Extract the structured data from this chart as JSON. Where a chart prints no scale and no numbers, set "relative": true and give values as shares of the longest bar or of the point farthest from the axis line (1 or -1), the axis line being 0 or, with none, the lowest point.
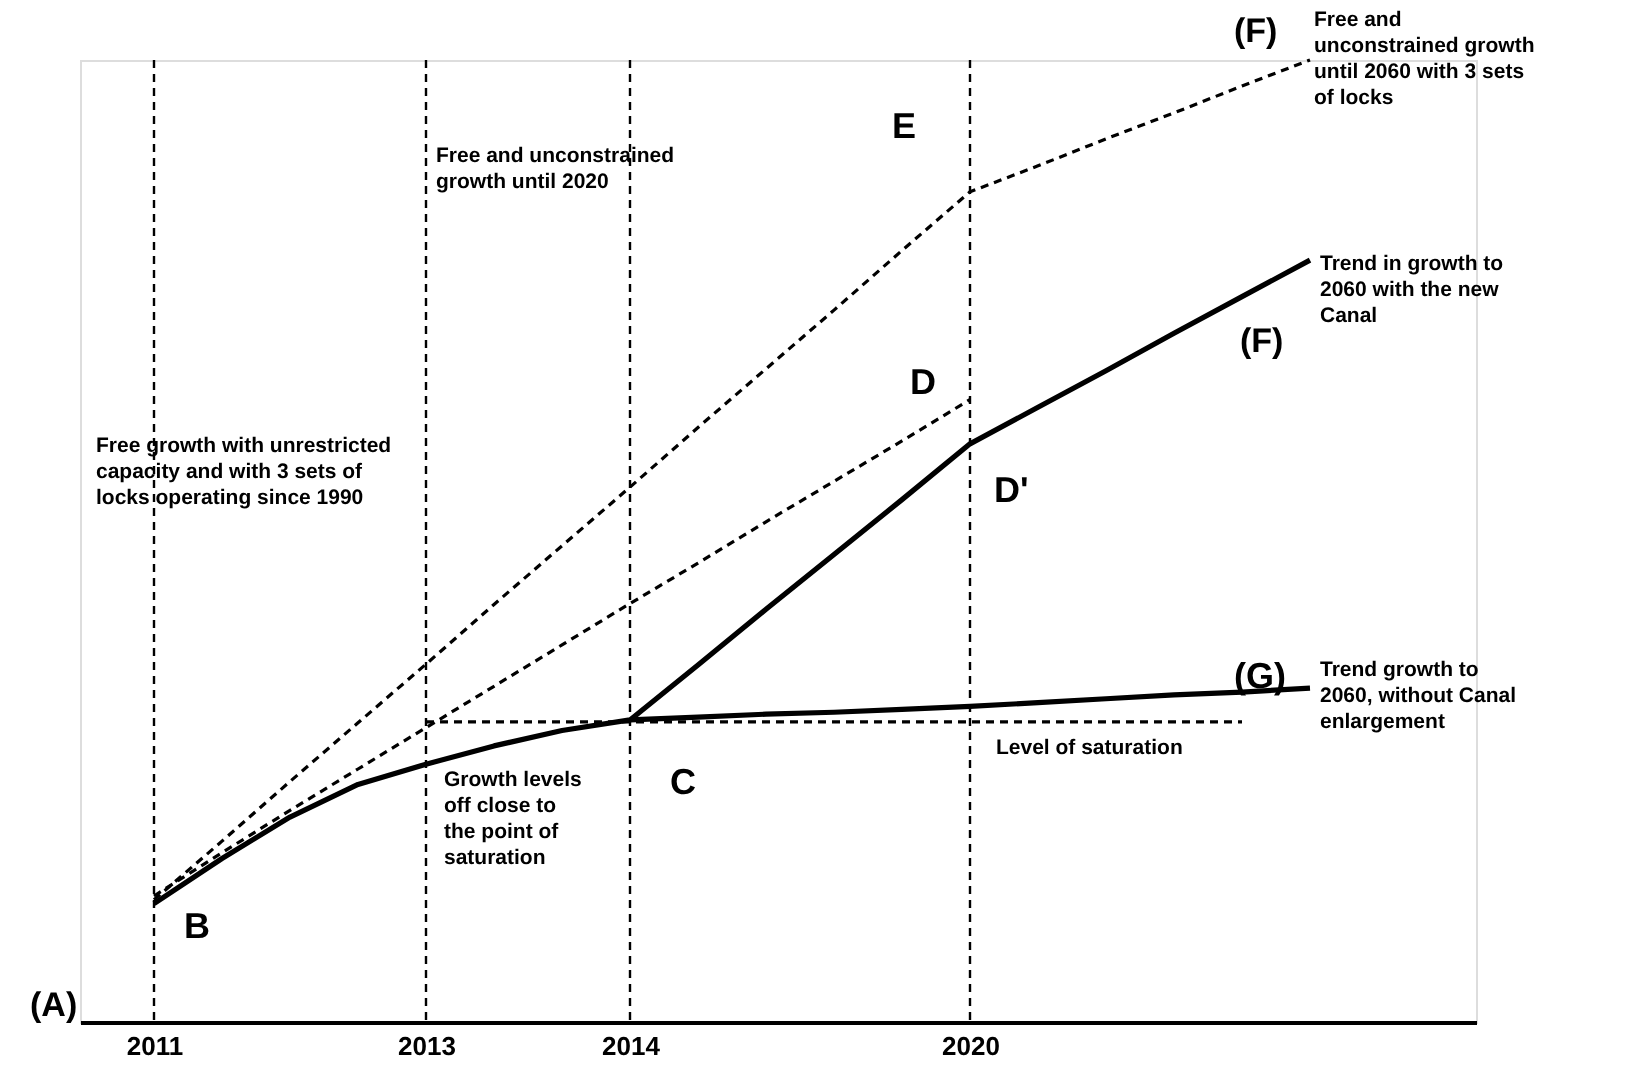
{
  "chart_data": {
    "type": "line",
    "relative": true,
    "grid": false,
    "tick_labels": "x",
    "marker": "none",
    "categories": [
      "2011",
      null,
      null,
      null,
      "2013",
      null,
      null,
      "2014",
      null,
      null,
      null,
      null,
      "2020",
      null,
      null,
      null,
      null,
      null
    ],
    "series": [
      {
        "color": "#000000",
        "line_style": "dashed",
        "values": [
          0.127,
          0.188,
          0.25,
          0.311,
          0.372,
          0.434,
          0.495,
          0.556,
          0.618,
          0.679,
          0.74,
          0.802,
          0.863,
          0.89,
          0.918,
          0.945,
          0.973,
          1.0
        ]
      },
      {
        "color": "#000000",
        "line_style": "dashed",
        "values": [
          0.131,
          0.176,
          0.22,
          0.263,
          0.306,
          0.349,
          0.392,
          0.435,
          0.477,
          0.52,
          0.562,
          0.604,
          0.647,
          null,
          null,
          null,
          null,
          null
        ]
      },
      {
        "color": "#000000",
        "line_style": "solid",
        "values": [
          0.123,
          0.17,
          0.213,
          0.247,
          0.268,
          0.287,
          0.303,
          0.314,
          0.371,
          0.429,
          0.486,
          0.543,
          0.601,
          0.639,
          0.677,
          0.716,
          0.754,
          0.792
        ]
      },
      {
        "color": "#000000",
        "line_style": "solid",
        "values": [
          null,
          null,
          null,
          null,
          null,
          null,
          null,
          0.314,
          0.317,
          0.32,
          0.322,
          0.325,
          0.328,
          0.332,
          0.336,
          0.34,
          0.343,
          0.347
        ]
      },
      {
        "color": "#000000",
        "line_style": "dashed",
        "values": [
          null,
          null,
          null,
          null,
          0.312,
          0.312,
          0.312,
          0.312,
          0.312,
          0.312,
          0.312,
          0.312,
          0.312,
          0.312,
          0.312,
          0.312,
          0.312,
          null
        ]
      }
    ],
    "ref_lines": [
      {
        "axis": "x",
        "value": "2011",
        "line_style": "dashed",
        "color": "#000000"
      },
      {
        "axis": "x",
        "value": "2013",
        "line_style": "dashed",
        "color": "#000000"
      },
      {
        "axis": "x",
        "value": "2014",
        "line_style": "dashed",
        "color": "#000000"
      },
      {
        "axis": "x",
        "value": "2020",
        "line_style": "dashed",
        "color": "#000000"
      }
    ],
    "annotations": [
      "(A)",
      {
        "text": "B",
        "x": "2011",
        "y": 0.123
      },
      {
        "text": "C",
        "x": "2014",
        "y": 0.314
      },
      {
        "text": "D",
        "x": "2020",
        "y": 0.647
      },
      {
        "text": "D'",
        "x": "2020",
        "y": 0.601
      },
      {
        "text": "E",
        "x": "2020",
        "y": 0.863
      },
      "(F)",
      "Free and\nunconstrained growth\nuntil 2060 with 3 sets\nof locks",
      "Trend in growth to\n2060 with the new\nCanal",
      "(F)",
      {
        "text": "(G)",
        "y": 0.347
      },
      "Trend growth to\n2060, without Canal\nenlargement",
      "Level of saturation",
      "Growth levels\noff close to\nthe point of\nsaturation",
      "Free growth with unrestricted\ncapacity and with 3 sets of\nlocks operating since 1990",
      "Free and unconstrained\ngrowth until 2020"
    ]
  }
}
